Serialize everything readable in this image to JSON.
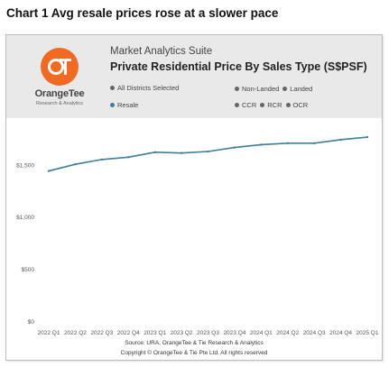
{
  "caption": "Chart 1 Avg resale prices rose at a slower pace",
  "logo": {
    "mark": "OT",
    "name": "OrangeTee",
    "sub": "Research & Analytics",
    "color": "#f26a21"
  },
  "header": {
    "suite": "Market Analytics Suite",
    "title": "Private Residential Price By Sales Type (S$PSF)"
  },
  "filters": {
    "districts": "All Districts Selected",
    "non_landed": "Non-Landed",
    "landed": "Landed",
    "resale": "Resale",
    "ccr": "CCR",
    "rcr": "RCR",
    "ocr": "OCR"
  },
  "colors": {
    "line": "#3c7f9c",
    "header_bg": "#e9e9e9",
    "dot": "#666666"
  },
  "chart_data": {
    "type": "line",
    "title": "Private Residential Price By Sales Type (S$PSF)",
    "categories": [
      "2022 Q1",
      "2022 Q2",
      "2022 Q3",
      "2022 Q4",
      "2023 Q1",
      "2023 Q2",
      "2023 Q3",
      "2023 Q4",
      "2024 Q1",
      "2024 Q2",
      "2024 Q3",
      "2024 Q4",
      "2025 Q1"
    ],
    "series": [
      {
        "name": "Resale",
        "values": [
          1445,
          1510,
          1555,
          1578,
          1625,
          1618,
          1632,
          1670,
          1698,
          1712,
          1712,
          1745,
          1770
        ]
      }
    ],
    "yticks": [
      0,
      500,
      1000,
      1500
    ],
    "ytick_labels": [
      "$0",
      "$500",
      "$1,000",
      "$1,500"
    ],
    "ylim": [
      0,
      1900
    ],
    "grid": false,
    "xlabel": "",
    "ylabel": ""
  },
  "footer": {
    "source": "Source: URA, OrangeTee & Tie Research & Analytics",
    "copyright": "Copyright © OrangeTee & Tie Pte Ltd. All rights reserved"
  }
}
